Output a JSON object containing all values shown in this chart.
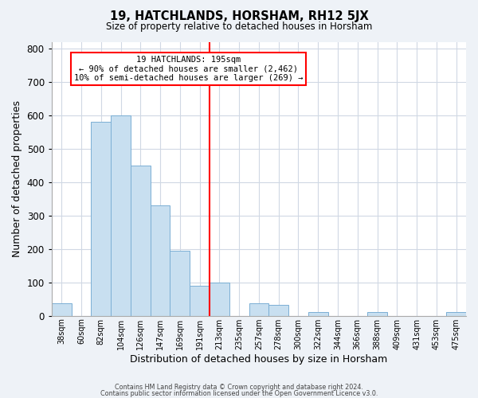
{
  "title": "19, HATCHLANDS, HORSHAM, RH12 5JX",
  "subtitle": "Size of property relative to detached houses in Horsham",
  "xlabel": "Distribution of detached houses by size in Horsham",
  "ylabel": "Number of detached properties",
  "bar_labels": [
    "38sqm",
    "60sqm",
    "82sqm",
    "104sqm",
    "126sqm",
    "147sqm",
    "169sqm",
    "191sqm",
    "213sqm",
    "235sqm",
    "257sqm",
    "278sqm",
    "300sqm",
    "322sqm",
    "344sqm",
    "366sqm",
    "388sqm",
    "409sqm",
    "431sqm",
    "453sqm",
    "475sqm"
  ],
  "bar_heights": [
    38,
    0,
    580,
    600,
    450,
    330,
    195,
    90,
    100,
    0,
    38,
    32,
    0,
    12,
    0,
    0,
    12,
    0,
    0,
    0,
    12
  ],
  "bar_color": "#c8dff0",
  "bar_edge_color": "#7bafd4",
  "vline_color": "red",
  "annotation_title": "19 HATCHLANDS: 195sqm",
  "annotation_line1": "← 90% of detached houses are smaller (2,462)",
  "annotation_line2": "10% of semi-detached houses are larger (269) →",
  "annotation_box_color": "white",
  "annotation_box_edge": "red",
  "ylim": [
    0,
    820
  ],
  "yticks": [
    0,
    100,
    200,
    300,
    400,
    500,
    600,
    700,
    800
  ],
  "footer1": "Contains HM Land Registry data © Crown copyright and database right 2024.",
  "footer2": "Contains public sector information licensed under the Open Government Licence v3.0.",
  "background_color": "#eef2f7",
  "plot_bg_color": "white",
  "grid_color": "#d0d8e4"
}
